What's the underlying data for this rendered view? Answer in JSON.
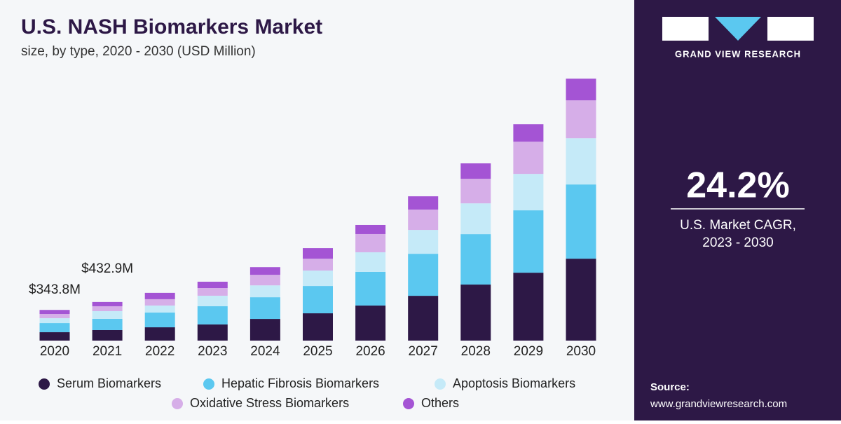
{
  "chart_data": {
    "type": "stacked_bar",
    "title": "U.S. NASH Biomarkers Market",
    "subtitle": "size, by type, 2020 - 2030 (USD Million)",
    "categories": [
      "2020",
      "2021",
      "2022",
      "2023",
      "2024",
      "2025",
      "2026",
      "2027",
      "2028",
      "2029",
      "2030"
    ],
    "series": [
      {
        "name": "Serum Biomarkers",
        "color": "#2d1846",
        "values": [
          94,
          118,
          149,
          181,
          243,
          306,
          393,
          502,
          628,
          761,
          918
        ]
      },
      {
        "name": "Hepatic Fibrosis Biomarkers",
        "color": "#5bc8f0",
        "values": [
          102,
          126,
          165,
          204,
          243,
          306,
          377,
          471,
          565,
          699,
          832
        ]
      },
      {
        "name": "Apoptosis Biomarkers",
        "color": "#c5eaf8",
        "values": [
          55,
          86,
          79,
          118,
          133,
          173,
          220,
          267,
          345,
          408,
          518
        ]
      },
      {
        "name": "Oxidative Stress Biomarkers",
        "color": "#d6aee8",
        "values": [
          47,
          55,
          71,
          86,
          118,
          133,
          204,
          228,
          275,
          361,
          424
        ]
      },
      {
        "name": "Others",
        "color": "#a454d4",
        "values": [
          45.8,
          47.9,
          71,
          71,
          86,
          118,
          102,
          149,
          173,
          196,
          243
        ]
      }
    ],
    "ylim": [
      0,
      3000
    ],
    "annotations": [
      {
        "category": "2020",
        "value": 343.8,
        "label": "$343.8M"
      },
      {
        "category": "2021",
        "value": 432.9,
        "label": "$432.9M"
      }
    ]
  },
  "side_panel": {
    "brand": "GRAND VIEW RESEARCH",
    "cagr": "24.2%",
    "cagr_label": [
      "U.S. Market CAGR,",
      "2023 - 2030"
    ],
    "source_title": "Source:",
    "source_url": "www.grandviewresearch.com"
  }
}
